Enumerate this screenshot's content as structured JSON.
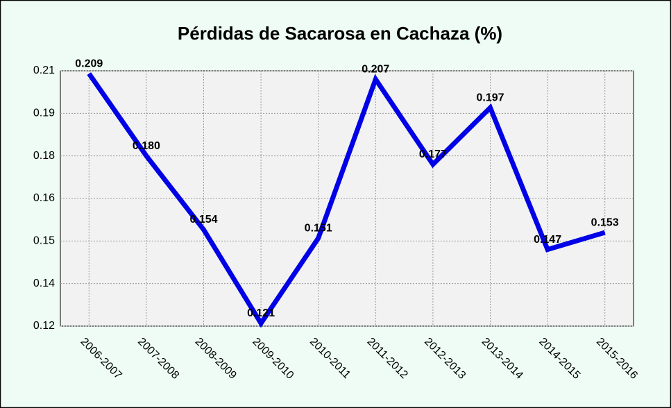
{
  "chart_data": {
    "type": "line",
    "title": "Pérdidas de Sacarosa en Cachaza (%)",
    "categories": [
      "2006-2007",
      "2007-2008",
      "2008-2009",
      "2009-2010",
      "2010-2011",
      "2011-2012",
      "2012-2013",
      "2013-2014",
      "2014-2015",
      "2015-2016"
    ],
    "series": [
      {
        "color": "#0000e6",
        "values": [
          0.209,
          0.18,
          0.154,
          0.121,
          0.151,
          0.207,
          0.177,
          0.197,
          0.147,
          0.153
        ],
        "value_labels": [
          "0.209",
          "0.180",
          "0.154",
          "0.121",
          "0.151",
          "0.207",
          "0.177",
          "0.197",
          "0.147",
          "0.153"
        ]
      }
    ],
    "ylim": [
      0.12,
      0.21
    ],
    "yticks": [
      0.12,
      {
        "value": 0.135,
        "label": "0.14"
      },
      0.15,
      {
        "value": 0.165,
        "label": "0.16"
      },
      0.18,
      {
        "value": 0.195,
        "label": "0.19"
      },
      0.21
    ],
    "grid": true
  }
}
